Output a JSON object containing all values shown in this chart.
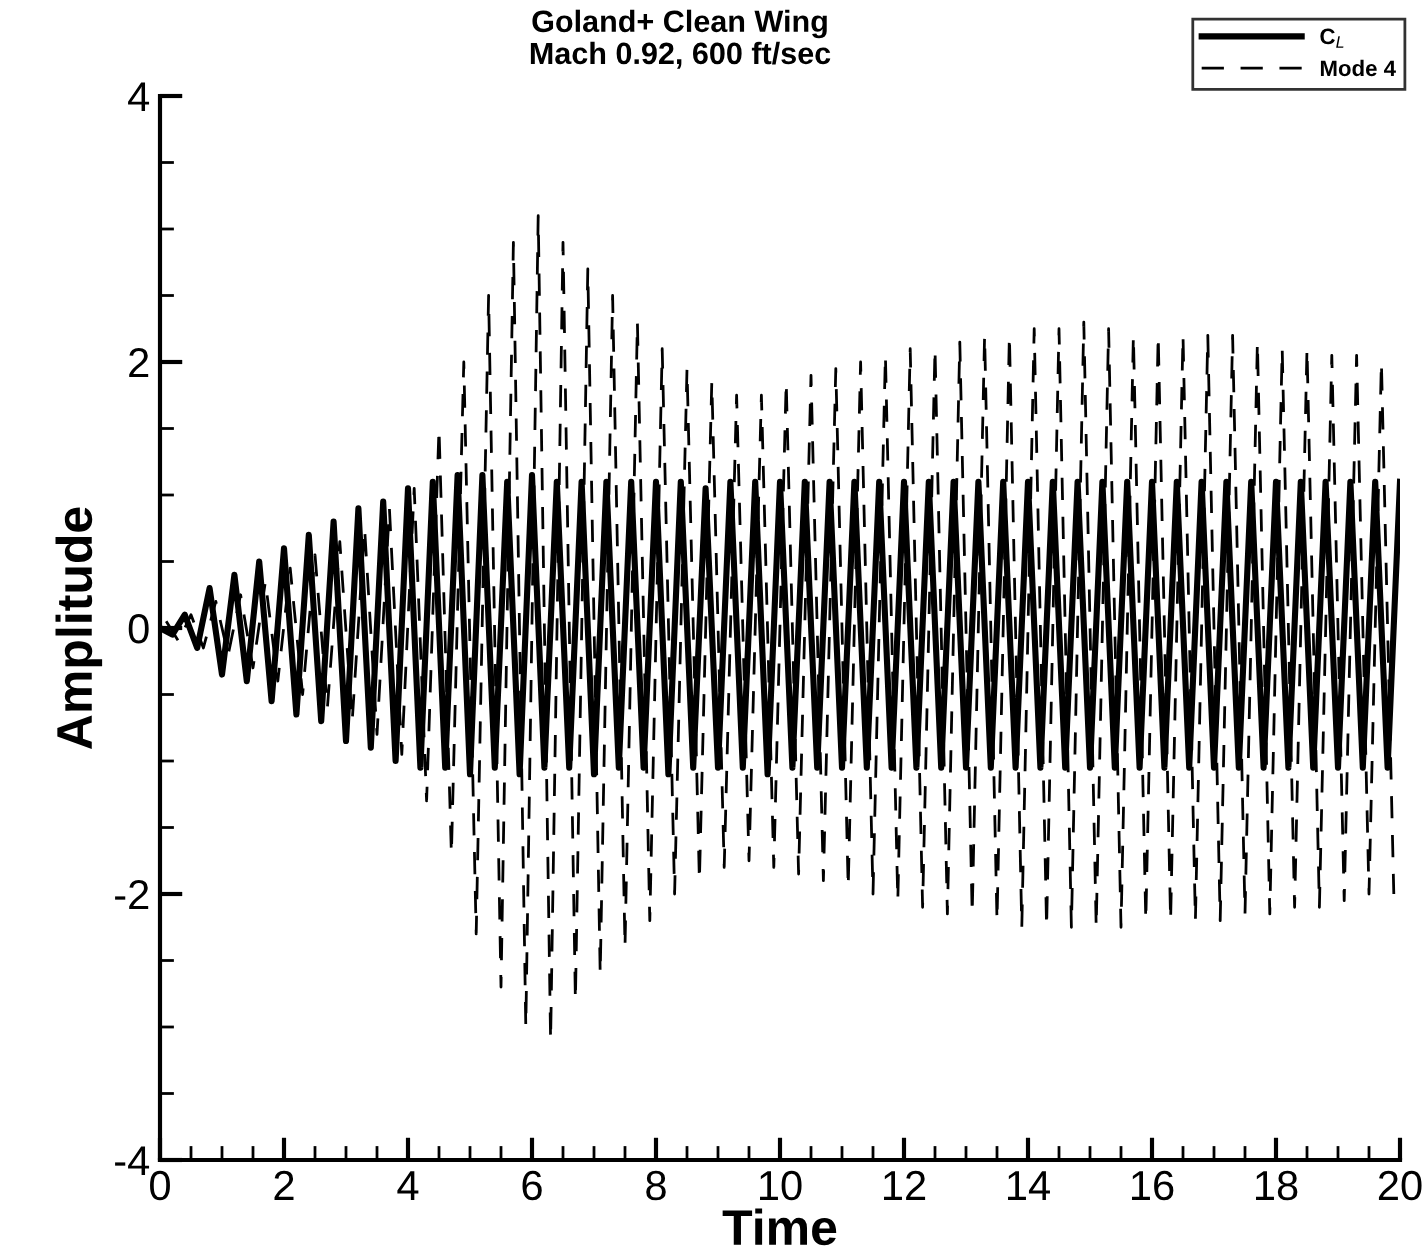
{
  "chart_data": {
    "type": "line",
    "title": "Goland+ Clean Wing",
    "subtitle": "Mach 0.92, 600 ft/sec",
    "xlabel": "Time",
    "ylabel": "Amplitude",
    "xlim": [
      0,
      20
    ],
    "xticks": [
      0,
      2,
      4,
      6,
      8,
      10,
      12,
      14,
      16,
      18,
      20
    ],
    "ylim": [
      -4,
      4
    ],
    "yticks": [
      -4,
      -2,
      0,
      2,
      4
    ],
    "grid": false,
    "legend": "top right",
    "marker": "none",
    "series": [
      {
        "name": "C$_{L}$",
        "color": "#000000",
        "line_style": "solid",
        "x": [
          0,
          0.2,
          0.4,
          0.6,
          0.8,
          1.0,
          1.2,
          1.4,
          1.6,
          1.8,
          2.0,
          2.2,
          2.4,
          2.6,
          2.8,
          3.0,
          3.2,
          3.4,
          3.6,
          3.8,
          4.0,
          4.2,
          4.4,
          4.6,
          4.8,
          5.0,
          5.2,
          5.4,
          5.6,
          5.8,
          6.0,
          6.2,
          6.4,
          6.6,
          6.8,
          7.0,
          7.2,
          7.4,
          7.6,
          7.8,
          8.0,
          8.2,
          8.4,
          8.6,
          8.8,
          9.0,
          9.2,
          9.4,
          9.6,
          9.8,
          10.0,
          10.2,
          10.4,
          10.6,
          10.8,
          11.0,
          11.2,
          11.4,
          11.6,
          11.8,
          12.0,
          12.2,
          12.4,
          12.6,
          12.8,
          13.0,
          13.2,
          13.4,
          13.6,
          13.8,
          14.0,
          14.2,
          14.4,
          14.6,
          14.8,
          15.0,
          15.2,
          15.4,
          15.6,
          15.8,
          16.0,
          16.2,
          16.4,
          16.6,
          16.8,
          17.0,
          17.2,
          17.4,
          17.6,
          17.8,
          18.0,
          18.2,
          18.4,
          18.6,
          18.8,
          19.0,
          19.2,
          19.4,
          19.6,
          19.8,
          20.0
        ],
        "values": [
          0,
          -0.05,
          0.1,
          -0.15,
          0.3,
          -0.35,
          0.4,
          -0.4,
          0.5,
          -0.55,
          0.6,
          -0.65,
          0.7,
          -0.7,
          0.8,
          -0.85,
          0.9,
          -0.9,
          0.95,
          -1.0,
          1.05,
          -1.05,
          1.1,
          -1.05,
          1.15,
          -1.1,
          1.15,
          -1.05,
          1.1,
          -1.1,
          1.15,
          -1.05,
          1.1,
          -1.05,
          1.1,
          -1.1,
          1.1,
          -1.05,
          1.1,
          -1.05,
          1.1,
          -1.1,
          1.1,
          -1.05,
          1.05,
          -1.05,
          1.1,
          -1.05,
          1.1,
          -1.1,
          1.1,
          -1.05,
          1.1,
          -1.05,
          1.1,
          -1.05,
          1.1,
          -1.05,
          1.1,
          -1.05,
          1.1,
          -1.05,
          1.1,
          -1.05,
          1.1,
          -1.05,
          1.1,
          -1.05,
          1.1,
          -1.05,
          1.1,
          -1.05,
          1.1,
          -1.05,
          1.1,
          -1.05,
          1.1,
          -1.05,
          1.1,
          -1.05,
          1.1,
          -1.05,
          1.1,
          -1.05,
          1.1,
          -1.05,
          1.1,
          -1.05,
          1.1,
          -1.05,
          1.1,
          -1.05,
          1.1,
          -1.05,
          1.1,
          -1.05,
          1.1,
          -1.05,
          1.1,
          -1.05,
          1.1
        ]
      },
      {
        "name": "Mode 4",
        "color": "#000000",
        "line_style": "dashed",
        "x": [
          0.1,
          0.3,
          0.5,
          0.7,
          0.9,
          1.1,
          1.3,
          1.5,
          1.7,
          1.9,
          2.1,
          2.3,
          2.5,
          2.7,
          2.9,
          3.1,
          3.3,
          3.5,
          3.7,
          3.9,
          4.1,
          4.3,
          4.5,
          4.7,
          4.9,
          5.1,
          5.3,
          5.5,
          5.7,
          5.9,
          6.1,
          6.3,
          6.5,
          6.7,
          6.9,
          7.1,
          7.3,
          7.5,
          7.7,
          7.9,
          8.1,
          8.3,
          8.5,
          8.7,
          8.9,
          9.1,
          9.3,
          9.5,
          9.7,
          9.9,
          10.1,
          10.3,
          10.5,
          10.7,
          10.9,
          11.1,
          11.3,
          11.5,
          11.7,
          11.9,
          12.1,
          12.3,
          12.5,
          12.7,
          12.9,
          13.1,
          13.3,
          13.5,
          13.7,
          13.9,
          14.1,
          14.3,
          14.5,
          14.7,
          14.9,
          15.1,
          15.3,
          15.5,
          15.7,
          15.9,
          16.1,
          16.3,
          16.5,
          16.7,
          16.9,
          17.1,
          17.3,
          17.5,
          17.7,
          17.9,
          18.1,
          18.3,
          18.5,
          18.7,
          18.9,
          19.1,
          19.3,
          19.5,
          19.7,
          19.9
        ],
        "values": [
          0.05,
          -0.1,
          0.1,
          -0.15,
          0.2,
          -0.2,
          0.25,
          -0.3,
          0.35,
          -0.4,
          0.45,
          -0.5,
          0.55,
          -0.6,
          0.65,
          -0.7,
          0.75,
          -0.8,
          0.9,
          -0.95,
          1.05,
          -1.3,
          1.5,
          -1.7,
          2.0,
          -2.3,
          2.5,
          -2.7,
          2.9,
          -3.0,
          3.1,
          -3.1,
          2.9,
          -2.8,
          2.7,
          -2.6,
          2.5,
          -2.4,
          2.3,
          -2.2,
          2.1,
          -2.0,
          1.95,
          -1.9,
          1.85,
          -1.8,
          1.75,
          -1.75,
          1.75,
          -1.8,
          1.85,
          -1.85,
          1.9,
          -1.9,
          1.95,
          -1.95,
          2.0,
          -2.0,
          2.05,
          -2.05,
          2.1,
          -2.1,
          2.1,
          -2.15,
          2.15,
          -2.15,
          2.2,
          -2.2,
          2.2,
          -2.25,
          2.25,
          -2.25,
          2.25,
          -2.25,
          2.3,
          -2.25,
          2.25,
          -2.25,
          2.2,
          -2.2,
          2.2,
          -2.2,
          2.2,
          -2.2,
          2.2,
          -2.2,
          2.2,
          -2.15,
          2.15,
          -2.15,
          2.1,
          -2.1,
          2.1,
          -2.1,
          2.05,
          -2.05,
          2.05,
          -2.0,
          2.0,
          -2.0
        ]
      }
    ]
  }
}
